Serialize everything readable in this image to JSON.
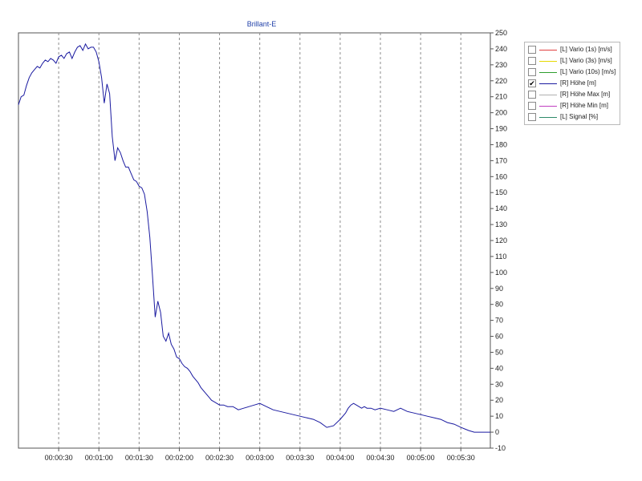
{
  "chart_data": {
    "type": "line",
    "title": "Brillant-E",
    "xlabel": "",
    "ylabel": "",
    "xlim_seconds": [
      0,
      352
    ],
    "ylim": [
      -10,
      250
    ],
    "x_ticks": [
      "00:00:30",
      "00:01:00",
      "00:01:30",
      "00:02:00",
      "00:02:30",
      "00:03:00",
      "00:03:30",
      "00:04:00",
      "00:04:30",
      "00:05:00",
      "00:05:30"
    ],
    "y_ticks": [
      -10,
      0,
      10,
      20,
      30,
      40,
      50,
      60,
      70,
      80,
      90,
      100,
      110,
      120,
      130,
      140,
      150,
      160,
      170,
      180,
      190,
      200,
      210,
      220,
      230,
      240,
      250
    ],
    "grid": {
      "vertical": true,
      "horizontal": false,
      "style": "dashed"
    },
    "legend_position": "right",
    "legend": [
      {
        "label": "[L] Vario (1s) [m/s]",
        "color": "#e04040",
        "checked": false
      },
      {
        "label": "[L] Vario (3s) [m/s]",
        "color": "#e6d800",
        "checked": false
      },
      {
        "label": "[L] Vario (10s) [m/s]",
        "color": "#2e9e2e",
        "checked": false
      },
      {
        "label": "[R] Höhe [m]",
        "color": "#1a1aa0",
        "checked": true
      },
      {
        "label": "[R] Höhe Max [m]",
        "color": "#b0b0b0",
        "checked": false
      },
      {
        "label": "[R] Höhe Min [m]",
        "color": "#c040c0",
        "checked": false
      },
      {
        "label": "[L] Signal [%]",
        "color": "#2e8a6a",
        "checked": false
      }
    ],
    "series": [
      {
        "name": "[R] Höhe [m]",
        "color": "#1a1aa0",
        "x": [
          0,
          2,
          4,
          6,
          8,
          10,
          12,
          14,
          16,
          18,
          20,
          22,
          24,
          26,
          28,
          30,
          32,
          34,
          36,
          38,
          40,
          42,
          44,
          46,
          48,
          50,
          52,
          54,
          56,
          58,
          60,
          62,
          64,
          66,
          68,
          70,
          72,
          74,
          76,
          78,
          80,
          82,
          84,
          86,
          88,
          90,
          92,
          94,
          96,
          98,
          100,
          102,
          104,
          106,
          108,
          110,
          112,
          114,
          116,
          118,
          120,
          122,
          124,
          126,
          128,
          130,
          132,
          134,
          136,
          138,
          140,
          142,
          144,
          146,
          148,
          150,
          153,
          156,
          160,
          164,
          168,
          172,
          176,
          180,
          185,
          190,
          195,
          200,
          205,
          210,
          215,
          220,
          225,
          230,
          235,
          240,
          244,
          246,
          248,
          250,
          252,
          254,
          256,
          258,
          260,
          263,
          266,
          270,
          275,
          280,
          285,
          290,
          295,
          300,
          305,
          310,
          315,
          320,
          325,
          330,
          333,
          336,
          340,
          344,
          348,
          352
        ],
        "values": [
          205,
          210,
          211,
          217,
          222,
          225,
          227,
          229,
          228,
          231,
          233,
          232,
          234,
          233,
          231,
          235,
          236,
          234,
          237,
          238,
          234,
          238,
          241,
          242,
          239,
          243,
          240,
          241,
          241,
          238,
          232,
          222,
          206,
          218,
          212,
          185,
          170,
          178,
          175,
          170,
          166,
          166,
          162,
          158,
          157,
          154,
          153,
          149,
          138,
          122,
          98,
          72,
          82,
          75,
          60,
          57,
          62,
          55,
          52,
          47,
          46,
          43,
          41,
          40,
          38,
          35,
          33,
          31,
          28,
          26,
          24,
          22,
          20,
          19,
          18,
          17,
          17,
          16,
          16,
          14,
          15,
          16,
          17,
          18,
          16,
          14,
          13,
          12,
          11,
          10,
          9,
          8,
          6,
          3,
          4,
          8,
          12,
          15,
          17,
          18,
          17,
          16,
          15,
          16,
          15,
          15,
          14,
          15,
          14,
          13,
          15,
          13,
          12,
          11,
          10,
          9,
          8,
          6,
          5,
          3,
          2,
          1,
          0,
          0,
          0,
          0
        ]
      }
    ]
  }
}
